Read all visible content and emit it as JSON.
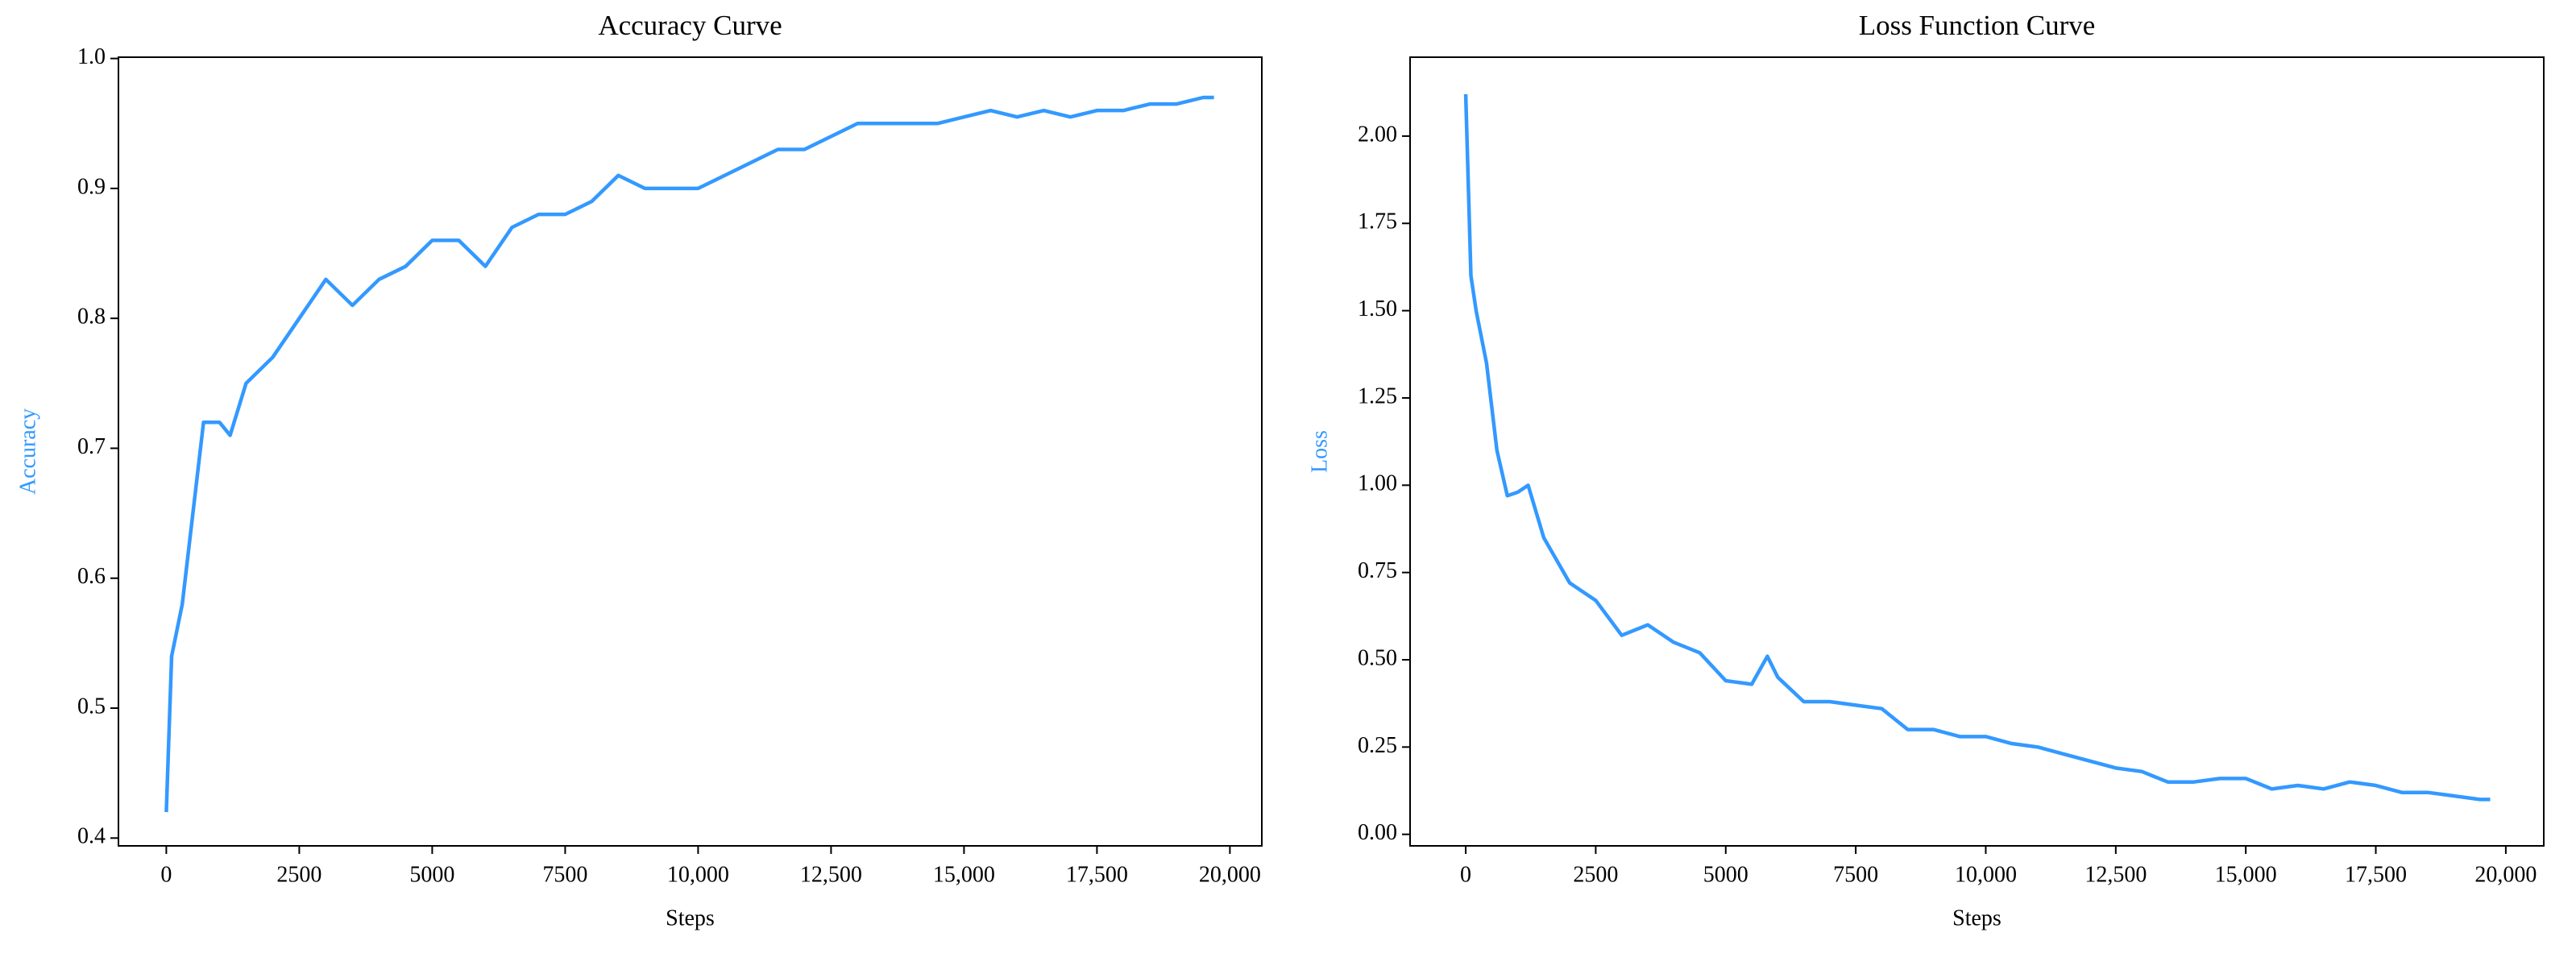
{
  "chart_data": [
    {
      "type": "line",
      "title": "Accuracy Curve",
      "xlabel": "Steps",
      "ylabel": "Accuracy",
      "x": [
        0,
        100,
        300,
        500,
        700,
        1000,
        1200,
        1500,
        2000,
        2500,
        3000,
        3500,
        4000,
        4500,
        5000,
        5500,
        6000,
        6500,
        7000,
        7500,
        8000,
        8500,
        9000,
        9500,
        10000,
        10500,
        11000,
        11500,
        12000,
        12500,
        13000,
        13500,
        14000,
        14500,
        15000,
        15500,
        16000,
        16500,
        17000,
        17500,
        18000,
        18500,
        19000,
        19500,
        19700
      ],
      "series": [
        {
          "name": "Accuracy",
          "color": "#3399ff",
          "values": [
            0.42,
            0.54,
            0.58,
            0.65,
            0.72,
            0.72,
            0.71,
            0.75,
            0.77,
            0.8,
            0.83,
            0.81,
            0.83,
            0.84,
            0.86,
            0.86,
            0.84,
            0.87,
            0.88,
            0.88,
            0.89,
            0.91,
            0.9,
            0.9,
            0.9,
            0.91,
            0.92,
            0.93,
            0.93,
            0.94,
            0.95,
            0.95,
            0.95,
            0.95,
            0.955,
            0.96,
            0.955,
            0.96,
            0.955,
            0.96,
            0.96,
            0.965,
            0.965,
            0.97,
            0.97
          ]
        }
      ],
      "xlim": [
        -900,
        20600
      ],
      "ylim": [
        0.394,
        1.001
      ],
      "xticks": [
        0,
        2500,
        5000,
        7500,
        {
          "value": 10000,
          "label": "10,000"
        },
        {
          "value": 12500,
          "label": "12,500"
        },
        {
          "value": 15000,
          "label": "15,000"
        },
        {
          "value": 17500,
          "label": "17,500"
        },
        {
          "value": 20000,
          "label": "20,000"
        }
      ],
      "yticks": [
        0.4,
        0.5,
        0.6,
        0.7,
        0.8,
        0.9,
        {
          "value": 1,
          "label": "1.0"
        }
      ],
      "grid": false
    },
    {
      "type": "line",
      "title": "Loss Function Curve",
      "xlabel": "Steps",
      "ylabel": "Loss",
      "x": [
        0,
        100,
        200,
        400,
        600,
        800,
        1000,
        1200,
        1500,
        2000,
        2500,
        3000,
        3500,
        4000,
        4500,
        5000,
        5500,
        5800,
        6000,
        6500,
        7000,
        7500,
        8000,
        8500,
        9000,
        9500,
        10000,
        10500,
        11000,
        11500,
        12000,
        12500,
        13000,
        13500,
        14000,
        14500,
        15000,
        15500,
        16000,
        16500,
        17000,
        17500,
        18000,
        18500,
        19000,
        19500,
        19700
      ],
      "series": [
        {
          "name": "Loss",
          "color": "#3399ff",
          "values": [
            2.12,
            1.6,
            1.5,
            1.35,
            1.1,
            0.97,
            0.98,
            1.0,
            0.85,
            0.72,
            0.67,
            0.57,
            0.6,
            0.55,
            0.52,
            0.44,
            0.43,
            0.51,
            0.45,
            0.38,
            0.38,
            0.37,
            0.36,
            0.3,
            0.3,
            0.28,
            0.28,
            0.26,
            0.25,
            0.23,
            0.21,
            0.19,
            0.18,
            0.15,
            0.15,
            0.16,
            0.16,
            0.13,
            0.14,
            0.13,
            0.15,
            0.14,
            0.12,
            0.12,
            0.11,
            0.1,
            0.1
          ]
        }
      ],
      "xlim": [
        -1070,
        20730
      ],
      "ylim": [
        -0.033,
        2.226
      ],
      "xticks": [
        0,
        2500,
        5000,
        7500,
        {
          "value": 10000,
          "label": "10,000"
        },
        {
          "value": 12500,
          "label": "12,500"
        },
        {
          "value": 15000,
          "label": "15,000"
        },
        {
          "value": 17500,
          "label": "17,500"
        },
        {
          "value": 20000,
          "label": "20,000"
        }
      ],
      "yticks": [
        {
          "value": 0,
          "label": "0.00"
        },
        0.25,
        {
          "value": 0.5,
          "label": "0.50"
        },
        0.75,
        {
          "value": 1,
          "label": "1.00"
        },
        1.25,
        {
          "value": 1.5,
          "label": "1.50"
        },
        1.75,
        {
          "value": 2,
          "label": "2.00"
        }
      ],
      "grid": false
    }
  ]
}
